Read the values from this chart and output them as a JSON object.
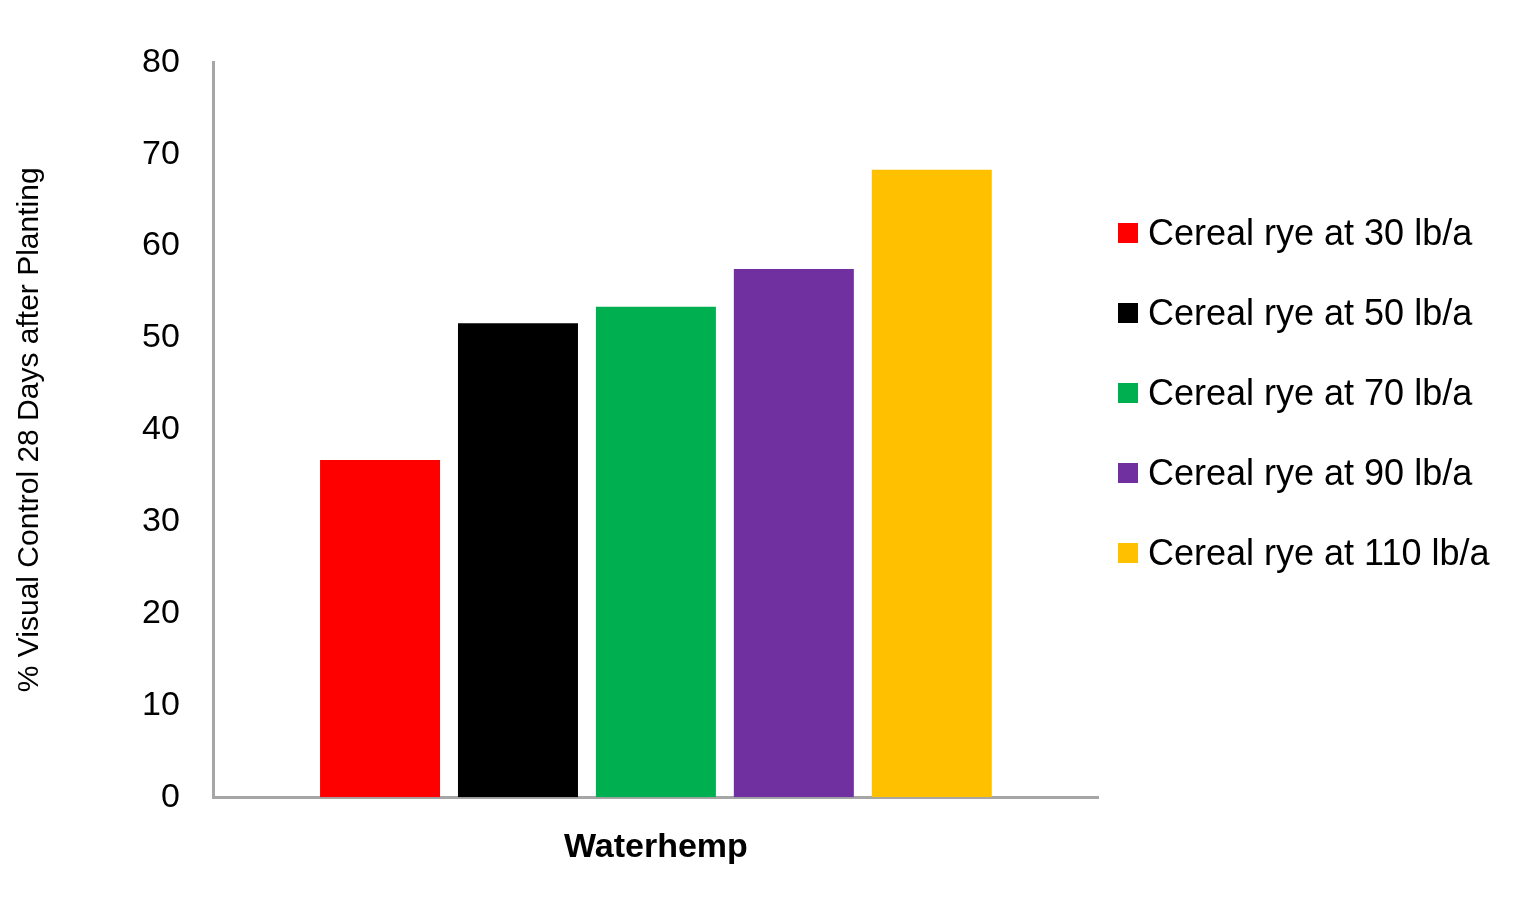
{
  "chart_data": {
    "type": "bar",
    "ylabel": "% Visual Control 28 Days after Planting",
    "categories": [
      "Waterhemp"
    ],
    "series": [
      {
        "name": "Cereal rye at 30 lb/a",
        "color": "#ff0000",
        "values": [
          36.7
        ]
      },
      {
        "name": "Cereal rye at 50 lb/a",
        "color": "#000000",
        "values": [
          51.6
        ]
      },
      {
        "name": "Cereal rye at 70 lb/a",
        "color": "#00b050",
        "values": [
          53.4
        ]
      },
      {
        "name": "Cereal rye at 90 lb/a",
        "color": "#7030a0",
        "values": [
          57.5
        ]
      },
      {
        "name": "Cereal rye at 110 lb/a",
        "color": "#ffc000",
        "values": [
          68.3
        ]
      }
    ],
    "ylim": [
      0,
      80
    ],
    "yticks": [
      0,
      10,
      20,
      30,
      40,
      50,
      60,
      70,
      80
    ],
    "grid": false,
    "legend": "right"
  }
}
